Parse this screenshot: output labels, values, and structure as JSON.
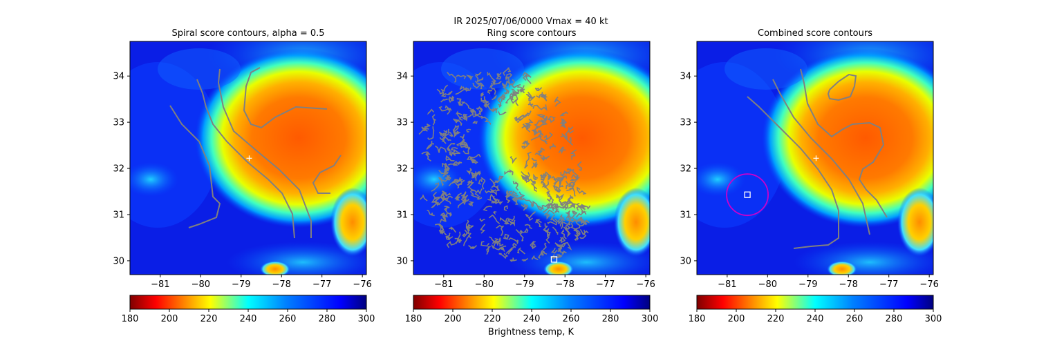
{
  "suptitle": "IR  2025/07/06/0000    Vmax = 40 kt",
  "colorbar_label": "Brightness temp, K",
  "chart_data": [
    {
      "type": "heatmap",
      "title": "Spiral score contours, alpha =  0.5",
      "xticks": [
        "-81",
        "-80",
        "-79",
        "-78",
        "-77",
        "-76"
      ],
      "yticks": [
        "30",
        "31",
        "32",
        "33",
        "34"
      ],
      "xlim": [
        -81.75,
        -75.9
      ],
      "ylim": [
        29.7,
        34.75
      ],
      "colorbar": {
        "ticks": [
          "180",
          "200",
          "220",
          "240",
          "260",
          "280",
          "300"
        ],
        "range": [
          180,
          300
        ],
        "colormap": "jet_r"
      },
      "markers": [
        {
          "type": "plus",
          "lon": -78.8,
          "lat": 32.22,
          "color": "#ffffff"
        }
      ],
      "contour_color": "#808080"
    },
    {
      "type": "heatmap",
      "title": "Ring score contours",
      "xticks": [
        "-81",
        "-80",
        "-79",
        "-78",
        "-77",
        "-76"
      ],
      "yticks": [
        "30",
        "31",
        "32",
        "33",
        "34"
      ],
      "xlim": [
        -81.75,
        -75.9
      ],
      "ylim": [
        29.7,
        34.75
      ],
      "colorbar": {
        "ticks": [
          "180",
          "200",
          "220",
          "240",
          "260",
          "280",
          "300"
        ],
        "range": [
          180,
          300
        ],
        "colormap": "jet_r"
      },
      "markers": [
        {
          "type": "square",
          "lon": -78.27,
          "lat": 30.03,
          "color": "#ffffff"
        }
      ],
      "contour_color": "#808080"
    },
    {
      "type": "heatmap",
      "title": "Combined score contours",
      "xticks": [
        "-81",
        "-80",
        "-79",
        "-78",
        "-77",
        "-76"
      ],
      "yticks": [
        "30",
        "31",
        "32",
        "33",
        "34"
      ],
      "xlim": [
        -81.75,
        -75.9
      ],
      "ylim": [
        29.7,
        34.75
      ],
      "colorbar": {
        "ticks": [
          "180",
          "200",
          "220",
          "240",
          "260",
          "280",
          "300"
        ],
        "range": [
          180,
          300
        ],
        "colormap": "jet_r"
      },
      "markers": [
        {
          "type": "plus",
          "lon": -78.8,
          "lat": 32.22,
          "color": "#ffffff"
        },
        {
          "type": "square",
          "lon": -80.5,
          "lat": 31.43,
          "color": "#ffffff"
        },
        {
          "type": "circle",
          "lon": -80.5,
          "lat": 31.43,
          "color": "#cc00cc"
        }
      ],
      "contour_color": "#808080"
    }
  ]
}
